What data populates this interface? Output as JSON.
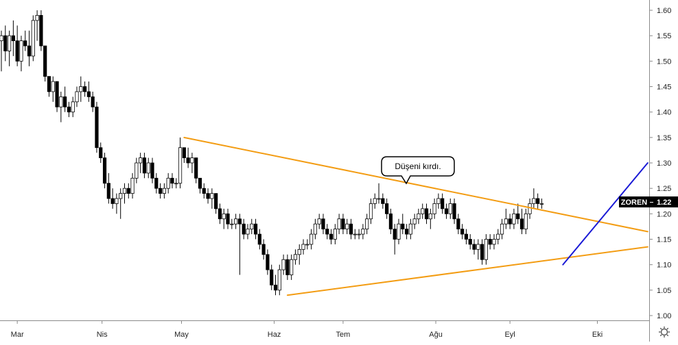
{
  "symbol": "ZOREN",
  "last_price": "1.22",
  "annotation": "Düşeni kırdı.",
  "colors": {
    "up_body": "#ffffff",
    "down_body": "#000000",
    "wick": "#000000",
    "falling_trendline": "#f39c12",
    "support_line": "#f39c12",
    "rising_trendline": "#1a1ad6",
    "axis": "#8a8a8a",
    "label_bg": "#000000",
    "label_text": "#ffffff"
  },
  "chart_data": {
    "type": "candlestick",
    "ylim": [
      0.97,
      1.62
    ],
    "y_ticks": [
      "1.00",
      "1.05",
      "1.10",
      "1.15",
      "1.20",
      "1.25",
      "1.30",
      "1.35",
      "1.40",
      "1.45",
      "1.50",
      "1.55",
      "1.60"
    ],
    "x_ticks": [
      {
        "label": "Mar",
        "bar": 6
      },
      {
        "label": "Nis",
        "bar": 38
      },
      {
        "label": "May",
        "bar": 68
      },
      {
        "label": "Haz",
        "bar": 103
      },
      {
        "label": "Tem",
        "bar": 129
      },
      {
        "label": "Ağu",
        "bar": 164
      },
      {
        "label": "Eyl",
        "bar": 192
      },
      {
        "label": "Eki",
        "bar": 225
      }
    ],
    "bars_total": 245,
    "candles": [
      {
        "o": 1.54,
        "h": 1.56,
        "l": 1.48,
        "c": 1.55
      },
      {
        "o": 1.55,
        "h": 1.57,
        "l": 1.5,
        "c": 1.52
      },
      {
        "o": 1.52,
        "h": 1.56,
        "l": 1.49,
        "c": 1.55
      },
      {
        "o": 1.55,
        "h": 1.58,
        "l": 1.51,
        "c": 1.54
      },
      {
        "o": 1.54,
        "h": 1.57,
        "l": 1.49,
        "c": 1.5
      },
      {
        "o": 1.5,
        "h": 1.55,
        "l": 1.48,
        "c": 1.54
      },
      {
        "o": 1.54,
        "h": 1.56,
        "l": 1.52,
        "c": 1.53
      },
      {
        "o": 1.53,
        "h": 1.56,
        "l": 1.49,
        "c": 1.51
      },
      {
        "o": 1.51,
        "h": 1.59,
        "l": 1.5,
        "c": 1.58
      },
      {
        "o": 1.58,
        "h": 1.6,
        "l": 1.54,
        "c": 1.59
      },
      {
        "o": 1.59,
        "h": 1.6,
        "l": 1.52,
        "c": 1.53
      },
      {
        "o": 1.53,
        "h": 1.53,
        "l": 1.46,
        "c": 1.47
      },
      {
        "o": 1.47,
        "h": 1.47,
        "l": 1.43,
        "c": 1.44
      },
      {
        "o": 1.44,
        "h": 1.47,
        "l": 1.42,
        "c": 1.46
      },
      {
        "o": 1.46,
        "h": 1.46,
        "l": 1.4,
        "c": 1.41
      },
      {
        "o": 1.41,
        "h": 1.44,
        "l": 1.38,
        "c": 1.43
      },
      {
        "o": 1.43,
        "h": 1.45,
        "l": 1.4,
        "c": 1.41
      },
      {
        "o": 1.41,
        "h": 1.42,
        "l": 1.39,
        "c": 1.4
      },
      {
        "o": 1.4,
        "h": 1.43,
        "l": 1.39,
        "c": 1.42
      },
      {
        "o": 1.42,
        "h": 1.45,
        "l": 1.41,
        "c": 1.44
      },
      {
        "o": 1.44,
        "h": 1.47,
        "l": 1.42,
        "c": 1.45
      },
      {
        "o": 1.45,
        "h": 1.46,
        "l": 1.43,
        "c": 1.44
      },
      {
        "o": 1.44,
        "h": 1.46,
        "l": 1.42,
        "c": 1.43
      },
      {
        "o": 1.43,
        "h": 1.44,
        "l": 1.4,
        "c": 1.41
      },
      {
        "o": 1.41,
        "h": 1.42,
        "l": 1.32,
        "c": 1.33
      },
      {
        "o": 1.33,
        "h": 1.34,
        "l": 1.3,
        "c": 1.31
      },
      {
        "o": 1.31,
        "h": 1.32,
        "l": 1.25,
        "c": 1.26
      },
      {
        "o": 1.26,
        "h": 1.28,
        "l": 1.22,
        "c": 1.23
      },
      {
        "o": 1.23,
        "h": 1.25,
        "l": 1.21,
        "c": 1.22
      },
      {
        "o": 1.22,
        "h": 1.24,
        "l": 1.2,
        "c": 1.23
      },
      {
        "o": 1.23,
        "h": 1.25,
        "l": 1.19,
        "c": 1.24
      },
      {
        "o": 1.24,
        "h": 1.26,
        "l": 1.22,
        "c": 1.25
      },
      {
        "o": 1.25,
        "h": 1.26,
        "l": 1.23,
        "c": 1.24
      },
      {
        "o": 1.24,
        "h": 1.28,
        "l": 1.23,
        "c": 1.27
      },
      {
        "o": 1.27,
        "h": 1.31,
        "l": 1.26,
        "c": 1.3
      },
      {
        "o": 1.3,
        "h": 1.32,
        "l": 1.28,
        "c": 1.31
      },
      {
        "o": 1.31,
        "h": 1.32,
        "l": 1.27,
        "c": 1.28
      },
      {
        "o": 1.28,
        "h": 1.31,
        "l": 1.27,
        "c": 1.3
      },
      {
        "o": 1.3,
        "h": 1.31,
        "l": 1.26,
        "c": 1.27
      },
      {
        "o": 1.27,
        "h": 1.28,
        "l": 1.24,
        "c": 1.25
      },
      {
        "o": 1.25,
        "h": 1.26,
        "l": 1.23,
        "c": 1.24
      },
      {
        "o": 1.24,
        "h": 1.26,
        "l": 1.23,
        "c": 1.25
      },
      {
        "o": 1.25,
        "h": 1.28,
        "l": 1.24,
        "c": 1.27
      },
      {
        "o": 1.27,
        "h": 1.28,
        "l": 1.25,
        "c": 1.26
      },
      {
        "o": 1.26,
        "h": 1.27,
        "l": 1.25,
        "c": 1.26
      },
      {
        "o": 1.26,
        "h": 1.35,
        "l": 1.25,
        "c": 1.33
      },
      {
        "o": 1.33,
        "h": 1.33,
        "l": 1.3,
        "c": 1.31
      },
      {
        "o": 1.31,
        "h": 1.33,
        "l": 1.29,
        "c": 1.3
      },
      {
        "o": 1.3,
        "h": 1.32,
        "l": 1.28,
        "c": 1.31
      },
      {
        "o": 1.31,
        "h": 1.31,
        "l": 1.26,
        "c": 1.27
      },
      {
        "o": 1.27,
        "h": 1.27,
        "l": 1.24,
        "c": 1.25
      },
      {
        "o": 1.25,
        "h": 1.26,
        "l": 1.23,
        "c": 1.24
      },
      {
        "o": 1.24,
        "h": 1.25,
        "l": 1.22,
        "c": 1.23
      },
      {
        "o": 1.23,
        "h": 1.25,
        "l": 1.21,
        "c": 1.24
      },
      {
        "o": 1.24,
        "h": 1.24,
        "l": 1.2,
        "c": 1.21
      },
      {
        "o": 1.21,
        "h": 1.22,
        "l": 1.18,
        "c": 1.19
      },
      {
        "o": 1.19,
        "h": 1.21,
        "l": 1.17,
        "c": 1.2
      },
      {
        "o": 1.2,
        "h": 1.21,
        "l": 1.17,
        "c": 1.18
      },
      {
        "o": 1.18,
        "h": 1.19,
        "l": 1.17,
        "c": 1.18
      },
      {
        "o": 1.18,
        "h": 1.2,
        "l": 1.17,
        "c": 1.19
      },
      {
        "o": 1.19,
        "h": 1.2,
        "l": 1.08,
        "c": 1.18
      },
      {
        "o": 1.18,
        "h": 1.19,
        "l": 1.15,
        "c": 1.16
      },
      {
        "o": 1.16,
        "h": 1.18,
        "l": 1.15,
        "c": 1.17
      },
      {
        "o": 1.17,
        "h": 1.19,
        "l": 1.16,
        "c": 1.18
      },
      {
        "o": 1.18,
        "h": 1.19,
        "l": 1.15,
        "c": 1.16
      },
      {
        "o": 1.16,
        "h": 1.17,
        "l": 1.13,
        "c": 1.14
      },
      {
        "o": 1.14,
        "h": 1.15,
        "l": 1.11,
        "c": 1.12
      },
      {
        "o": 1.12,
        "h": 1.13,
        "l": 1.08,
        "c": 1.09
      },
      {
        "o": 1.09,
        "h": 1.1,
        "l": 1.05,
        "c": 1.06
      },
      {
        "o": 1.06,
        "h": 1.08,
        "l": 1.04,
        "c": 1.05
      },
      {
        "o": 1.05,
        "h": 1.1,
        "l": 1.04,
        "c": 1.09
      },
      {
        "o": 1.09,
        "h": 1.12,
        "l": 1.08,
        "c": 1.11
      },
      {
        "o": 1.11,
        "h": 1.12,
        "l": 1.07,
        "c": 1.08
      },
      {
        "o": 1.08,
        "h": 1.12,
        "l": 1.07,
        "c": 1.11
      },
      {
        "o": 1.11,
        "h": 1.13,
        "l": 1.1,
        "c": 1.12
      },
      {
        "o": 1.12,
        "h": 1.14,
        "l": 1.1,
        "c": 1.13
      },
      {
        "o": 1.13,
        "h": 1.15,
        "l": 1.12,
        "c": 1.14
      },
      {
        "o": 1.14,
        "h": 1.15,
        "l": 1.13,
        "c": 1.14
      },
      {
        "o": 1.14,
        "h": 1.17,
        "l": 1.13,
        "c": 1.16
      },
      {
        "o": 1.16,
        "h": 1.19,
        "l": 1.15,
        "c": 1.18
      },
      {
        "o": 1.18,
        "h": 1.2,
        "l": 1.17,
        "c": 1.19
      },
      {
        "o": 1.19,
        "h": 1.2,
        "l": 1.16,
        "c": 1.17
      },
      {
        "o": 1.17,
        "h": 1.18,
        "l": 1.15,
        "c": 1.16
      },
      {
        "o": 1.16,
        "h": 1.17,
        "l": 1.14,
        "c": 1.15
      },
      {
        "o": 1.15,
        "h": 1.18,
        "l": 1.14,
        "c": 1.17
      },
      {
        "o": 1.17,
        "h": 1.2,
        "l": 1.16,
        "c": 1.19
      },
      {
        "o": 1.19,
        "h": 1.2,
        "l": 1.16,
        "c": 1.17
      },
      {
        "o": 1.17,
        "h": 1.19,
        "l": 1.16,
        "c": 1.18
      },
      {
        "o": 1.18,
        "h": 1.19,
        "l": 1.15,
        "c": 1.16
      },
      {
        "o": 1.16,
        "h": 1.17,
        "l": 1.15,
        "c": 1.16
      },
      {
        "o": 1.16,
        "h": 1.17,
        "l": 1.15,
        "c": 1.16
      },
      {
        "o": 1.16,
        "h": 1.18,
        "l": 1.15,
        "c": 1.17
      },
      {
        "o": 1.17,
        "h": 1.2,
        "l": 1.16,
        "c": 1.19
      },
      {
        "o": 1.19,
        "h": 1.23,
        "l": 1.18,
        "c": 1.22
      },
      {
        "o": 1.22,
        "h": 1.24,
        "l": 1.21,
        "c": 1.23
      },
      {
        "o": 1.23,
        "h": 1.26,
        "l": 1.22,
        "c": 1.23
      },
      {
        "o": 1.23,
        "h": 1.24,
        "l": 1.21,
        "c": 1.22
      },
      {
        "o": 1.22,
        "h": 1.23,
        "l": 1.19,
        "c": 1.2
      },
      {
        "o": 1.2,
        "h": 1.21,
        "l": 1.16,
        "c": 1.17
      },
      {
        "o": 1.17,
        "h": 1.18,
        "l": 1.12,
        "c": 1.15
      },
      {
        "o": 1.15,
        "h": 1.19,
        "l": 1.14,
        "c": 1.18
      },
      {
        "o": 1.18,
        "h": 1.2,
        "l": 1.16,
        "c": 1.17
      },
      {
        "o": 1.17,
        "h": 1.18,
        "l": 1.15,
        "c": 1.16
      },
      {
        "o": 1.16,
        "h": 1.19,
        "l": 1.15,
        "c": 1.18
      },
      {
        "o": 1.18,
        "h": 1.2,
        "l": 1.17,
        "c": 1.19
      },
      {
        "o": 1.19,
        "h": 1.21,
        "l": 1.18,
        "c": 1.2
      },
      {
        "o": 1.2,
        "h": 1.22,
        "l": 1.19,
        "c": 1.21
      },
      {
        "o": 1.21,
        "h": 1.22,
        "l": 1.18,
        "c": 1.19
      },
      {
        "o": 1.19,
        "h": 1.21,
        "l": 1.17,
        "c": 1.2
      },
      {
        "o": 1.2,
        "h": 1.23,
        "l": 1.19,
        "c": 1.22
      },
      {
        "o": 1.22,
        "h": 1.24,
        "l": 1.21,
        "c": 1.23
      },
      {
        "o": 1.23,
        "h": 1.24,
        "l": 1.2,
        "c": 1.21
      },
      {
        "o": 1.21,
        "h": 1.22,
        "l": 1.19,
        "c": 1.2
      },
      {
        "o": 1.2,
        "h": 1.23,
        "l": 1.19,
        "c": 1.22
      },
      {
        "o": 1.22,
        "h": 1.23,
        "l": 1.18,
        "c": 1.19
      },
      {
        "o": 1.19,
        "h": 1.2,
        "l": 1.16,
        "c": 1.17
      },
      {
        "o": 1.17,
        "h": 1.18,
        "l": 1.15,
        "c": 1.16
      },
      {
        "o": 1.16,
        "h": 1.17,
        "l": 1.14,
        "c": 1.15
      },
      {
        "o": 1.15,
        "h": 1.16,
        "l": 1.13,
        "c": 1.14
      },
      {
        "o": 1.14,
        "h": 1.15,
        "l": 1.12,
        "c": 1.13
      },
      {
        "o": 1.13,
        "h": 1.15,
        "l": 1.11,
        "c": 1.14
      },
      {
        "o": 1.14,
        "h": 1.15,
        "l": 1.1,
        "c": 1.11
      },
      {
        "o": 1.11,
        "h": 1.16,
        "l": 1.1,
        "c": 1.15
      },
      {
        "o": 1.15,
        "h": 1.16,
        "l": 1.13,
        "c": 1.14
      },
      {
        "o": 1.14,
        "h": 1.16,
        "l": 1.13,
        "c": 1.15
      },
      {
        "o": 1.15,
        "h": 1.17,
        "l": 1.14,
        "c": 1.16
      },
      {
        "o": 1.16,
        "h": 1.19,
        "l": 1.15,
        "c": 1.18
      },
      {
        "o": 1.18,
        "h": 1.21,
        "l": 1.17,
        "c": 1.19
      },
      {
        "o": 1.19,
        "h": 1.2,
        "l": 1.17,
        "c": 1.18
      },
      {
        "o": 1.18,
        "h": 1.21,
        "l": 1.17,
        "c": 1.2
      },
      {
        "o": 1.2,
        "h": 1.22,
        "l": 1.18,
        "c": 1.19
      },
      {
        "o": 1.19,
        "h": 1.21,
        "l": 1.16,
        "c": 1.17
      },
      {
        "o": 1.17,
        "h": 1.21,
        "l": 1.16,
        "c": 1.2
      },
      {
        "o": 1.2,
        "h": 1.23,
        "l": 1.19,
        "c": 1.22
      },
      {
        "o": 1.22,
        "h": 1.25,
        "l": 1.21,
        "c": 1.23
      },
      {
        "o": 1.23,
        "h": 1.24,
        "l": 1.21,
        "c": 1.22
      },
      {
        "o": 1.22,
        "h": 1.23,
        "l": 1.21,
        "c": 1.22
      }
    ],
    "candle_start_bar": 0,
    "trendlines": [
      {
        "name": "falling",
        "from": {
          "bar": 69,
          "price": 1.35
        },
        "to": {
          "bar": 244,
          "price": 1.165
        }
      },
      {
        "name": "support",
        "from": {
          "bar": 108,
          "price": 1.04
        },
        "to": {
          "bar": 244,
          "price": 1.135
        }
      },
      {
        "name": "rising",
        "from": {
          "bar": 212,
          "price": 1.1
        },
        "to": {
          "bar": 244,
          "price": 1.3
        }
      }
    ],
    "annotation_point": {
      "bar": 170,
      "price": 1.255
    }
  }
}
